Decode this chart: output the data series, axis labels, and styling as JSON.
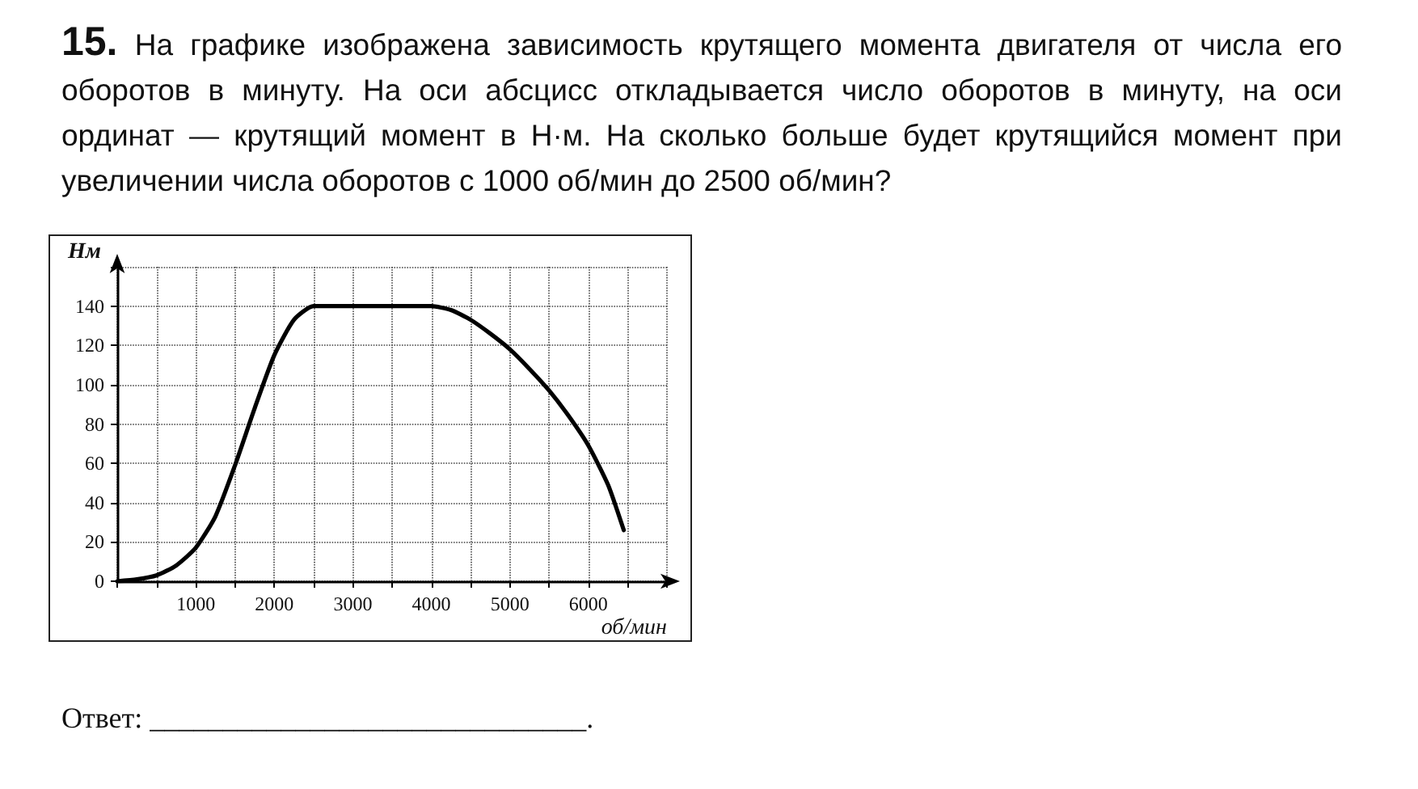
{
  "chart_data": {
    "type": "line",
    "title": "15. На графике изображена зависимость крутящего момента двигателя от числа его оборотов в минуту. На оси абсцисс откладывается число оборотов в минуту, на оси ординат — крутящий момент в Н·м. На сколько больше будет крутящийся момент при увеличении числа оборотов с 1000 об/мин до 2500 об/мин?",
    "xlabel": "об/мин",
    "ylabel": "Нм",
    "annotations": [
      "Ответ: ______________________________."
    ],
    "x": [
      0,
      250,
      500,
      750,
      1000,
      1250,
      1500,
      1750,
      2000,
      2250,
      2500,
      3000,
      3500,
      4000,
      4250,
      4500,
      4750,
      5000,
      5250,
      5500,
      5750,
      6000,
      6250,
      6450
    ],
    "series": [
      {
        "color": "#000000",
        "values": [
          0,
          1,
          3,
          8,
          17,
          33,
          59,
          88,
          115,
          133,
          140,
          140,
          140,
          140,
          138,
          133,
          126,
          118,
          108,
          97,
          84,
          69,
          49,
          26
        ]
      }
    ],
    "xlim": [
      0,
      7000
    ],
    "xticks": [
      {
        "value": 0,
        "label": null
      },
      {
        "value": 500,
        "label": null
      },
      1000,
      {
        "value": 1500,
        "label": null
      },
      2000,
      {
        "value": 2500,
        "label": null
      },
      3000,
      {
        "value": 3500,
        "label": null
      },
      4000,
      {
        "value": 4500,
        "label": null
      },
      5000,
      {
        "value": 5500,
        "label": null
      },
      6000,
      {
        "value": 6500,
        "label": null
      },
      {
        "value": 7000,
        "label": null
      }
    ],
    "ylim": [
      0,
      160
    ],
    "yticks": [
      0,
      20,
      40,
      60,
      80,
      100,
      120,
      140,
      {
        "value": 160,
        "label": null
      }
    ],
    "grid": true,
    "marker": "none",
    "line_style": "solid"
  }
}
